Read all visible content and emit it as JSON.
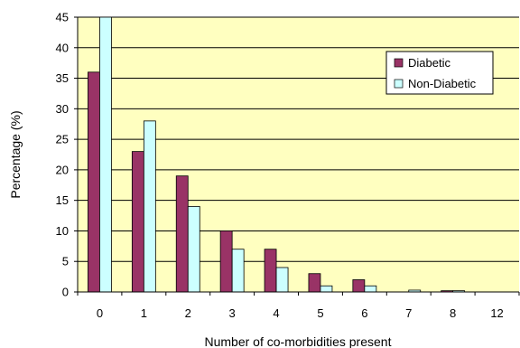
{
  "chart_data": {
    "type": "bar",
    "title": "",
    "xlabel": "Number of co-morbidities present",
    "ylabel": "Percentage (%)",
    "categories": [
      "0",
      "1",
      "2",
      "3",
      "4",
      "5",
      "6",
      "7",
      "8",
      "12"
    ],
    "series": [
      {
        "name": "Diabetic",
        "values": [
          36,
          23,
          19,
          10,
          7,
          3,
          2,
          0,
          0.2,
          0
        ],
        "color": "#993366"
      },
      {
        "name": "Non-Diabetic",
        "values": [
          45,
          28,
          14,
          7,
          4,
          1,
          1,
          0.3,
          0.2,
          0
        ],
        "color": "#ccffff"
      }
    ],
    "ylim": [
      0,
      45
    ],
    "yticks": [
      0,
      5,
      10,
      15,
      20,
      25,
      30,
      35,
      40,
      45
    ],
    "grid": true,
    "legend_position": "top-right",
    "plot_background": "#ffffc0"
  }
}
